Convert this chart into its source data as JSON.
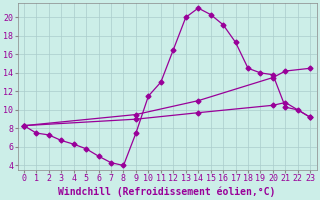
{
  "xlabel": "Windchill (Refroidissement éolien,°C)",
  "bg_color": "#cceee8",
  "line_color": "#990099",
  "grid_color": "#aacccc",
  "xlim": [
    -0.5,
    23.5
  ],
  "ylim": [
    3.5,
    21.5
  ],
  "yticks": [
    4,
    6,
    8,
    10,
    12,
    14,
    16,
    18,
    20
  ],
  "xticks": [
    0,
    1,
    2,
    3,
    4,
    5,
    6,
    7,
    8,
    9,
    10,
    11,
    12,
    13,
    14,
    15,
    16,
    17,
    18,
    19,
    20,
    21,
    22,
    23
  ],
  "line1_x": [
    0,
    1,
    2,
    3,
    4,
    5,
    6,
    7,
    8,
    9,
    10,
    11,
    12,
    13,
    14,
    15,
    16,
    17,
    18,
    19,
    20,
    21,
    22,
    23
  ],
  "line1_y": [
    8.3,
    7.5,
    7.3,
    6.7,
    6.3,
    5.8,
    5.0,
    4.3,
    4.0,
    7.5,
    11.5,
    13.0,
    16.5,
    20.0,
    21.0,
    20.3,
    19.2,
    17.3,
    14.5,
    14.0,
    13.8,
    10.3,
    10.0,
    9.2
  ],
  "line2_x": [
    0,
    9,
    14,
    20,
    21,
    23
  ],
  "line2_y": [
    8.3,
    9.5,
    11.0,
    13.5,
    14.2,
    14.5
  ],
  "line3_x": [
    0,
    9,
    14,
    20,
    21,
    23
  ],
  "line3_y": [
    8.3,
    9.0,
    9.7,
    10.5,
    10.8,
    9.2
  ],
  "font_size": 7,
  "tick_font_size": 6,
  "marker": "D",
  "marker_size": 2.5,
  "line_width": 0.9
}
